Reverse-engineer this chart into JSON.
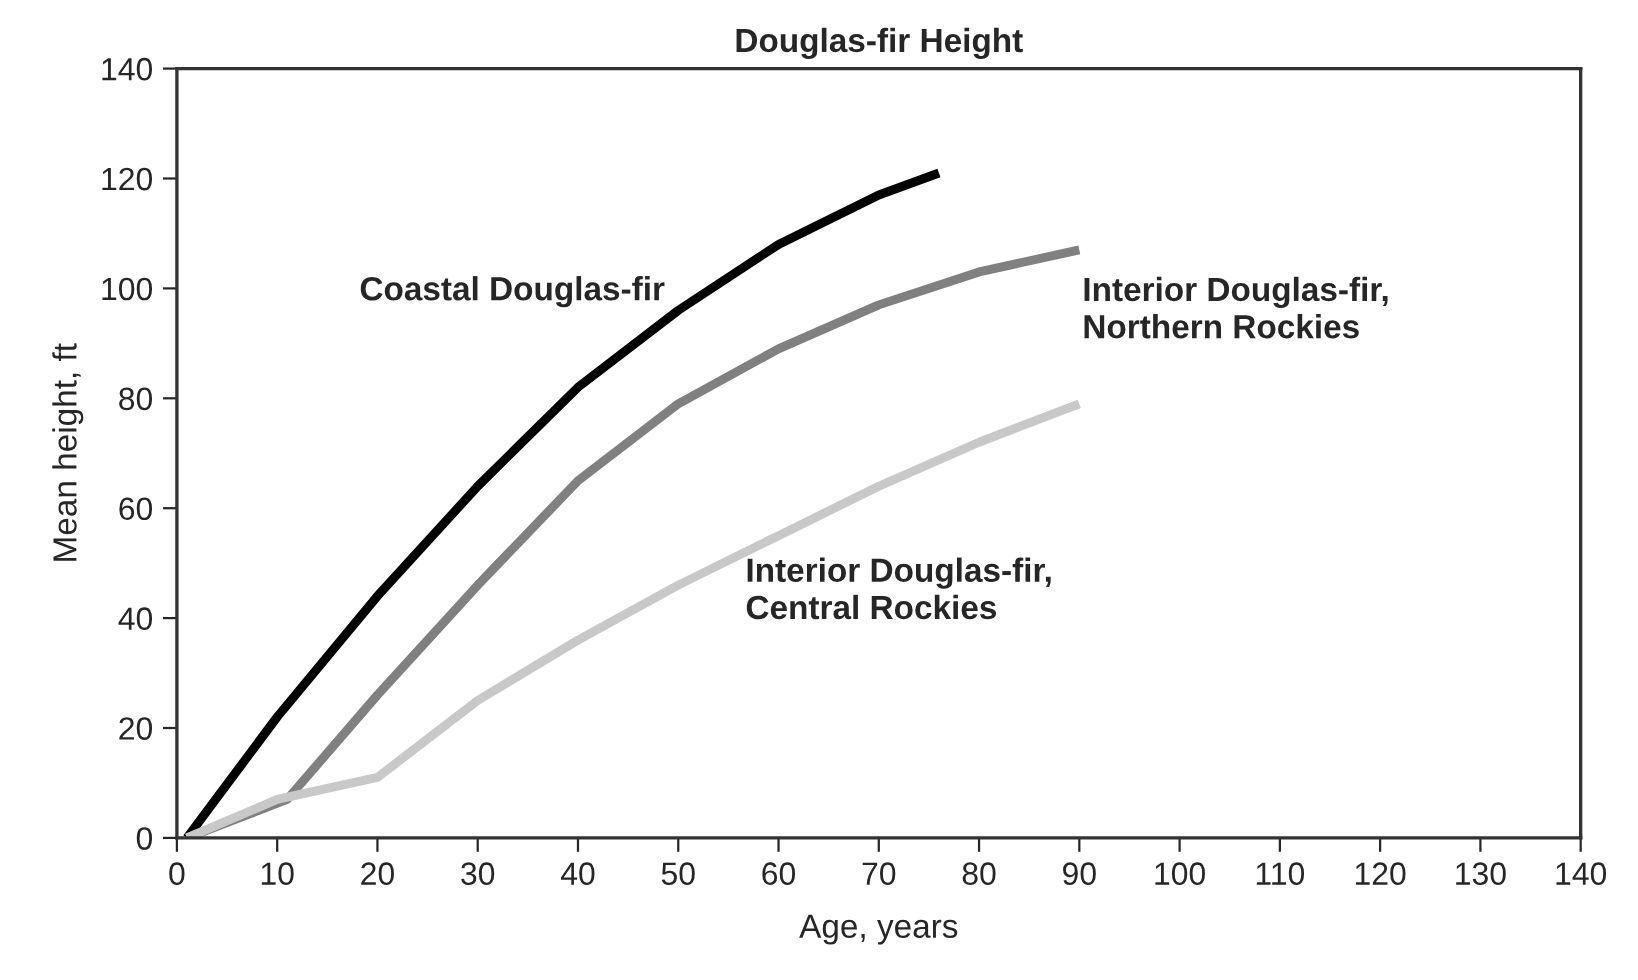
{
  "chart_data": {
    "type": "line",
    "title": "Douglas-fir Height",
    "xlabel": "Age, years",
    "ylabel": "Mean height, ft",
    "xlim": [
      0,
      140
    ],
    "xticks": [
      0,
      10,
      20,
      30,
      40,
      50,
      60,
      70,
      80,
      90,
      100,
      110,
      120,
      130,
      140
    ],
    "ylim": [
      0,
      140
    ],
    "yticks": [
      0,
      20,
      40,
      60,
      80,
      100,
      120,
      140
    ],
    "grid": false,
    "legend": false,
    "marker": "none",
    "line_style": "solid",
    "series": [
      {
        "name": "Coastal Douglas-fir",
        "color": "#000000",
        "x": [
          1,
          10,
          20,
          30,
          40,
          50,
          60,
          70,
          76
        ],
        "values": [
          0,
          22,
          44,
          64,
          82,
          96,
          108,
          117,
          121
        ]
      },
      {
        "name": "Interior Douglas-fir,\nNorthern Rockies",
        "color": "#808080",
        "x": [
          1,
          11,
          20,
          30,
          40,
          50,
          60,
          70,
          80,
          90
        ],
        "values": [
          0,
          7,
          26,
          46,
          65,
          79,
          89,
          97,
          103,
          107
        ]
      },
      {
        "name": "Interior Douglas-fir,\nCentral Rockies",
        "color": "#c8c8c8",
        "x": [
          1,
          10,
          20,
          30,
          40,
          50,
          60,
          70,
          80,
          90
        ],
        "values": [
          0,
          7,
          11,
          25,
          36,
          46,
          55,
          64,
          72,
          79
        ]
      }
    ]
  }
}
